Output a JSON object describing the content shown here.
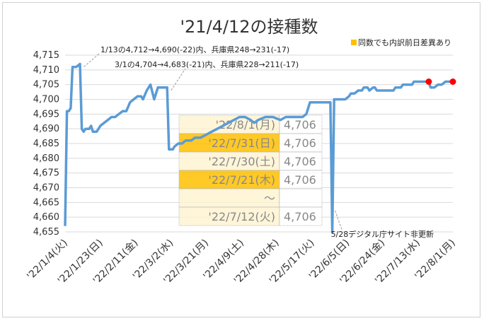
{
  "chart_data": {
    "type": "line",
    "title": "'21/4/12の接種数",
    "legend": {
      "label": "同数でも内訳前日差異あり",
      "color": "#FFC000"
    },
    "line_color": "#5B9BD5",
    "marker_color": "#FF0000",
    "ylim": [
      4655,
      4715
    ],
    "yticks": [
      4655,
      4660,
      4665,
      4670,
      4675,
      4680,
      4685,
      4690,
      4695,
      4700,
      4705,
      4710,
      4715
    ],
    "ytick_labels": [
      "4,655",
      "4,660",
      "4,665",
      "4,670",
      "4,675",
      "4,680",
      "4,685",
      "4,690",
      "4,695",
      "4,700",
      "4,705",
      "4,710",
      "4,715"
    ],
    "xlim": [
      "2022-01-04",
      "2022-08-01"
    ],
    "xticks": [
      {
        "date": "2022-01-04",
        "label": "'22/1/4(火)"
      },
      {
        "date": "2022-01-23",
        "label": "'22/1/23(日)"
      },
      {
        "date": "2022-02-11",
        "label": "'22/2/11(金)"
      },
      {
        "date": "2022-03-02",
        "label": "'22/3/2(水)"
      },
      {
        "date": "2022-03-21",
        "label": "'22/3/21(月)"
      },
      {
        "date": "2022-04-09",
        "label": "'22/4/9(土)"
      },
      {
        "date": "2022-04-28",
        "label": "'22/4/28(木)"
      },
      {
        "date": "2022-05-17",
        "label": "'22/5/17(火)"
      },
      {
        "date": "2022-06-05",
        "label": "'22/6/5(日)"
      },
      {
        "date": "2022-06-24",
        "label": "'22/6/24(金)"
      },
      {
        "date": "2022-07-13",
        "label": "'22/7/13(水)"
      },
      {
        "date": "2022-08-01",
        "label": "'22/8/1(月)"
      }
    ],
    "series": [
      {
        "points": [
          [
            "2022-01-04",
            4657
          ],
          [
            "2022-01-05",
            4696
          ],
          [
            "2022-01-06",
            4696
          ],
          [
            "2022-01-07",
            4697
          ],
          [
            "2022-01-08",
            4711
          ],
          [
            "2022-01-10",
            4711
          ],
          [
            "2022-01-12",
            4712
          ],
          [
            "2022-01-13",
            4690
          ],
          [
            "2022-01-14",
            4689
          ],
          [
            "2022-01-15",
            4690
          ],
          [
            "2022-01-17",
            4690
          ],
          [
            "2022-01-18",
            4691
          ],
          [
            "2022-01-19",
            4689
          ],
          [
            "2022-01-21",
            4689
          ],
          [
            "2022-01-22",
            4690
          ],
          [
            "2022-01-23",
            4691
          ],
          [
            "2022-01-25",
            4692
          ],
          [
            "2022-01-27",
            4693
          ],
          [
            "2022-01-29",
            4694
          ],
          [
            "2022-01-31",
            4694
          ],
          [
            "2022-02-02",
            4695
          ],
          [
            "2022-02-04",
            4696
          ],
          [
            "2022-02-06",
            4696
          ],
          [
            "2022-02-08",
            4699
          ],
          [
            "2022-02-10",
            4700
          ],
          [
            "2022-02-12",
            4701
          ],
          [
            "2022-02-14",
            4701
          ],
          [
            "2022-02-15",
            4700
          ],
          [
            "2022-02-17",
            4703
          ],
          [
            "2022-02-19",
            4705
          ],
          [
            "2022-02-21",
            4700
          ],
          [
            "2022-02-22",
            4702
          ],
          [
            "2022-02-23",
            4704
          ],
          [
            "2022-02-25",
            4704
          ],
          [
            "2022-02-28",
            4704
          ],
          [
            "2022-03-01",
            4683
          ],
          [
            "2022-03-03",
            4683
          ],
          [
            "2022-03-04",
            4684
          ],
          [
            "2022-03-06",
            4685
          ],
          [
            "2022-03-08",
            4685
          ],
          [
            "2022-03-10",
            4686
          ],
          [
            "2022-03-13",
            4686
          ],
          [
            "2022-03-15",
            4687
          ],
          [
            "2022-03-18",
            4687
          ],
          [
            "2022-03-21",
            4688
          ],
          [
            "2022-03-24",
            4689
          ],
          [
            "2022-03-27",
            4690
          ],
          [
            "2022-03-30",
            4691
          ],
          [
            "2022-04-02",
            4692
          ],
          [
            "2022-04-05",
            4693
          ],
          [
            "2022-04-08",
            4694
          ],
          [
            "2022-04-11",
            4694
          ],
          [
            "2022-04-14",
            4693
          ],
          [
            "2022-04-16",
            4692
          ],
          [
            "2022-04-18",
            4693
          ],
          [
            "2022-04-22",
            4694
          ],
          [
            "2022-04-26",
            4694
          ],
          [
            "2022-04-30",
            4693
          ],
          [
            "2022-05-03",
            4694
          ],
          [
            "2022-05-08",
            4694
          ],
          [
            "2022-05-12",
            4694
          ],
          [
            "2022-05-14",
            4695
          ],
          [
            "2022-05-16",
            4699
          ],
          [
            "2022-05-20",
            4699
          ],
          [
            "2022-05-24",
            4699
          ],
          [
            "2022-05-27",
            4699
          ],
          [
            "2022-05-28",
            4655
          ],
          [
            "2022-05-29",
            4700
          ],
          [
            "2022-05-31",
            4700
          ],
          [
            "2022-06-02",
            4700
          ],
          [
            "2022-06-04",
            4700
          ],
          [
            "2022-06-06",
            4701
          ],
          [
            "2022-06-07",
            4702
          ],
          [
            "2022-06-09",
            4702
          ],
          [
            "2022-06-11",
            4703
          ],
          [
            "2022-06-13",
            4703
          ],
          [
            "2022-06-14",
            4704
          ],
          [
            "2022-06-16",
            4704
          ],
          [
            "2022-06-17",
            4703
          ],
          [
            "2022-06-19",
            4704
          ],
          [
            "2022-06-20",
            4704
          ],
          [
            "2022-06-21",
            4703
          ],
          [
            "2022-06-24",
            4703
          ],
          [
            "2022-06-27",
            4703
          ],
          [
            "2022-06-30",
            4703
          ],
          [
            "2022-07-01",
            4704
          ],
          [
            "2022-07-04",
            4704
          ],
          [
            "2022-07-05",
            4705
          ],
          [
            "2022-07-08",
            4705
          ],
          [
            "2022-07-10",
            4705
          ],
          [
            "2022-07-11",
            4706
          ],
          [
            "2022-07-13",
            4706
          ],
          [
            "2022-07-15",
            4706
          ],
          [
            "2022-07-17",
            4706
          ],
          [
            "2022-07-19",
            4706
          ],
          [
            "2022-07-20",
            4704
          ],
          [
            "2022-07-22",
            4704
          ],
          [
            "2022-07-24",
            4705
          ],
          [
            "2022-07-26",
            4705
          ],
          [
            "2022-07-28",
            4706
          ],
          [
            "2022-07-30",
            4706
          ],
          [
            "2022-07-31",
            4706
          ],
          [
            "2022-08-01",
            4706
          ]
        ]
      }
    ],
    "red_markers": [
      [
        "2022-07-19",
        4706
      ],
      [
        "2022-08-01",
        4706
      ]
    ],
    "annotations": [
      {
        "text": "1/13の4,712→4,690(-22)内、兵庫県248→231(-17)",
        "date": "2022-01-13",
        "value": 4712
      },
      {
        "text": "3/1の4,704→4,683(-21)内、兵庫県228→211(-17)",
        "date": "2022-03-01",
        "value": 4704
      },
      {
        "text": "5/28デジタル庁サイト非更新",
        "date": "2022-05-28",
        "value": 4655
      }
    ],
    "table": [
      {
        "date": "'22/8/1(月)",
        "value": "4,706",
        "highlight": false
      },
      {
        "date": "'22/7/31(日)",
        "value": "4,706",
        "highlight": true
      },
      {
        "date": "'22/7/30(土)",
        "value": "4,706",
        "highlight": false
      },
      {
        "date": "'22/7/21(木)",
        "value": "4,706",
        "highlight": true
      },
      {
        "date": "～",
        "value": "",
        "highlight": false
      },
      {
        "date": "'22/7/12(火)",
        "value": "4,706",
        "highlight": false
      }
    ],
    "table_colors": {
      "light": "#FFF2CC",
      "highlight": "#FFC000"
    }
  }
}
